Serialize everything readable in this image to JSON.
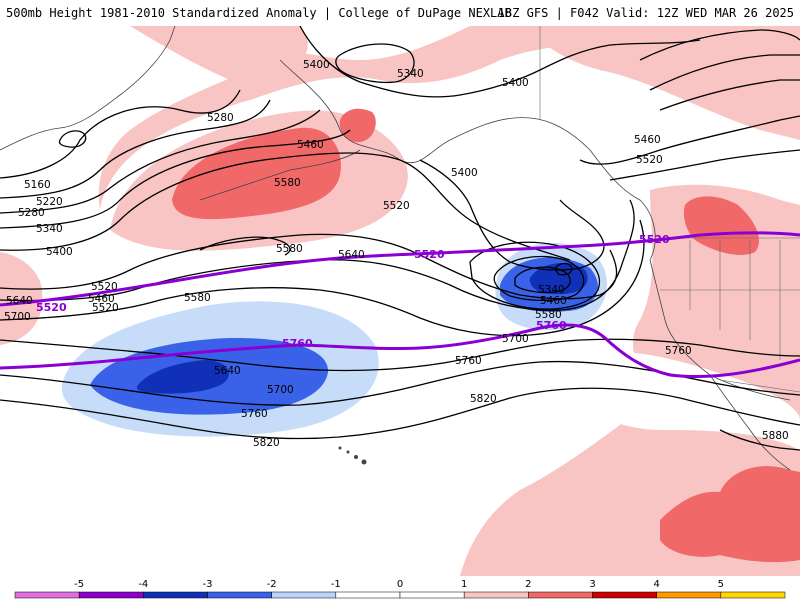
{
  "title": {
    "left": "500mb Height 1981-2010 Standardized Anomaly | College of DuPage NEXLAB",
    "right": "18Z GFS | F042 Valid: 12Z WED MAR 26 2025"
  },
  "colorbar": {
    "ticks": [
      "-5",
      "-4",
      "-3",
      "-2",
      "-1",
      "0",
      "1",
      "2",
      "3",
      "4",
      "5"
    ],
    "colors": [
      "#e06fe0",
      "#8a00c8",
      "#1030b8",
      "#3a62e8",
      "#b9d4f8",
      "#ffffff",
      "#ffffff",
      "#f8c4c4",
      "#f06868",
      "#c80000",
      "#ff9900",
      "#ffd400"
    ]
  },
  "contour_labels": [
    "5160",
    "5220",
    "5280",
    "5340",
    "5400",
    "5460",
    "5520",
    "5580",
    "5640",
    "5700",
    "5280",
    "5400",
    "5340",
    "5400",
    "5460",
    "5520",
    "5460",
    "5580",
    "5520",
    "5400",
    "5580",
    "5640",
    "5520",
    "5340",
    "5460",
    "5580",
    "5700",
    "5640",
    "5700",
    "5760",
    "5820",
    "5760",
    "5820",
    "5880",
    "5760"
  ],
  "thick_labels": [
    "5520",
    "5520",
    "5520",
    "5760",
    "5760"
  ],
  "colors": {
    "positive_light": "#f8c4c4",
    "positive_mid": "#f06868",
    "negative_light": "#c7dcf8",
    "negative_mid": "#3a62e8",
    "negative_dark": "#1030b8",
    "thick_contour": "#8a00d4"
  }
}
